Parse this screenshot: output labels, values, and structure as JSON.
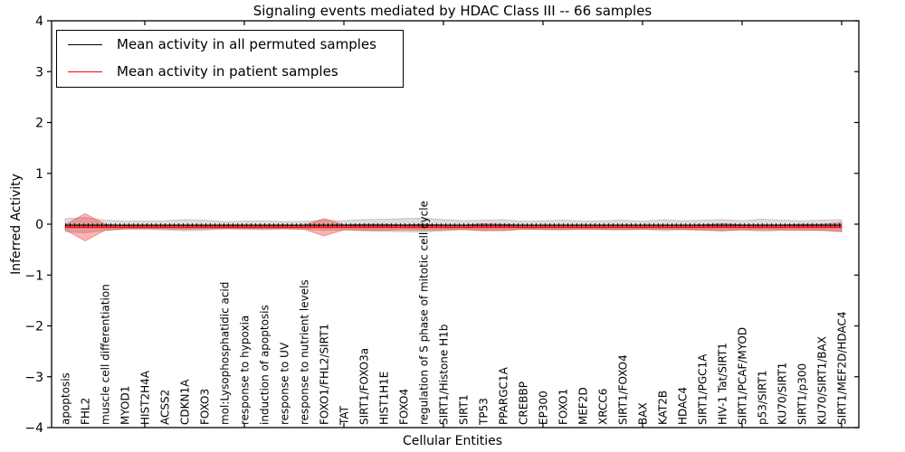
{
  "window": {
    "background": "#ffffff"
  },
  "chart_data": {
    "type": "line",
    "title": "Signaling events mediated by HDAC Class III -- 66 samples",
    "xlabel": "Cellular Entities",
    "ylabel": "Inferred Activity",
    "ylim": [
      -4,
      4
    ],
    "yticks": [
      "4",
      "3",
      "2",
      "1",
      "0",
      "−1",
      "−2",
      "−3",
      "−4"
    ],
    "ytick_values": [
      4,
      3,
      2,
      1,
      0,
      -1,
      -2,
      -3,
      -4
    ],
    "xticks_at_entity": [
      5,
      10,
      15,
      20,
      25,
      30,
      35,
      40
    ],
    "grid": false,
    "legend_position": "upper left",
    "categories": [
      "apoptosis",
      "FHL2",
      "muscle cell differentiation",
      "MYOD1",
      "HIST2H4A",
      "ACSS2",
      "CDKN1A",
      "FOXO3",
      "mol:Lysophosphatidic acid",
      "response to hypoxia",
      "induction of apoptosis",
      "response to UV",
      "response to nutrient levels",
      "FOXO1/FHL2/SIRT1",
      "TAT",
      "SIRT1/FOXO3a",
      "HIST1H1E",
      "FOXO4",
      "regulation of S phase of mitotic cell cycle",
      "SIRT1/Histone H1b",
      "SIRT1",
      "TP53",
      "PPARGC1A",
      "CREBBP",
      "EP300",
      "FOXO1",
      "MEF2D",
      "XRCC6",
      "SIRT1/FOXO4",
      "BAX",
      "KAT2B",
      "HDAC4",
      "SIRT1/PGC1A",
      "HIV-1 Tat/SIRT1",
      "SIRT1/PCAF/MYOD",
      "p53/SIRT1",
      "KU70/SIRT1",
      "SIRT1/p300",
      "KU70/SIRT1/BAX",
      "SIRT1/MEF2D/HDAC4"
    ],
    "series": [
      {
        "name": "Mean activity in all permuted samples",
        "color": "#000000",
        "values": [
          -0.02,
          -0.02,
          -0.02,
          -0.02,
          -0.02,
          -0.02,
          -0.02,
          -0.02,
          -0.02,
          -0.02,
          -0.02,
          -0.02,
          -0.02,
          -0.02,
          -0.02,
          -0.02,
          -0.02,
          -0.02,
          -0.02,
          -0.02,
          -0.02,
          -0.02,
          -0.02,
          -0.02,
          -0.02,
          -0.02,
          -0.02,
          -0.02,
          -0.02,
          -0.02,
          -0.02,
          -0.02,
          -0.02,
          -0.02,
          -0.02,
          -0.02,
          -0.02,
          -0.02,
          -0.02,
          -0.02
        ]
      },
      {
        "name": "Mean activity in patient samples",
        "color": "#ff0000",
        "values": [
          -0.06,
          -0.06,
          -0.06,
          -0.06,
          -0.06,
          -0.06,
          -0.06,
          -0.06,
          -0.06,
          -0.06,
          -0.06,
          -0.06,
          -0.06,
          -0.06,
          -0.06,
          -0.06,
          -0.06,
          -0.06,
          -0.06,
          -0.06,
          -0.06,
          -0.06,
          -0.06,
          -0.06,
          -0.06,
          -0.06,
          -0.06,
          -0.06,
          -0.06,
          -0.06,
          -0.06,
          -0.06,
          -0.06,
          -0.06,
          -0.06,
          -0.06,
          -0.06,
          -0.06,
          -0.06,
          -0.06
        ]
      }
    ],
    "bands": [
      {
        "name": "permuted-activity-range",
        "fill": "rgba(128,128,128,0.28)",
        "stroke": "rgba(110,110,110,0.35)",
        "center_series": 0,
        "half_widths": [
          0.13,
          0.15,
          0.1,
          0.08,
          0.08,
          0.09,
          0.11,
          0.1,
          0.07,
          0.08,
          0.09,
          0.07,
          0.08,
          0.1,
          0.09,
          0.11,
          0.12,
          0.13,
          0.14,
          0.11,
          0.09,
          0.1,
          0.11,
          0.08,
          0.09,
          0.1,
          0.08,
          0.09,
          0.1,
          0.08,
          0.11,
          0.09,
          0.1,
          0.11,
          0.09,
          0.12,
          0.1,
          0.09,
          0.1,
          0.11
        ]
      },
      {
        "name": "patient-activity-range",
        "fill": "rgba(255,0,0,0.30)",
        "stroke": "rgba(205,30,30,0.45)",
        "center_series": 1,
        "half_widths": [
          0.05,
          0.27,
          0.06,
          0.03,
          0.03,
          0.03,
          0.04,
          0.03,
          0.03,
          0.03,
          0.03,
          0.03,
          0.04,
          0.17,
          0.05,
          0.06,
          0.06,
          0.05,
          0.06,
          0.05,
          0.04,
          0.07,
          0.06,
          0.04,
          0.04,
          0.04,
          0.04,
          0.04,
          0.04,
          0.04,
          0.04,
          0.04,
          0.05,
          0.07,
          0.05,
          0.05,
          0.05,
          0.06,
          0.06,
          0.09
        ]
      }
    ]
  },
  "legend": {
    "items": [
      {
        "label": "Mean activity in all permuted samples",
        "color": "#000000"
      },
      {
        "label": "Mean activity in patient samples",
        "color": "#ff0000"
      }
    ]
  }
}
